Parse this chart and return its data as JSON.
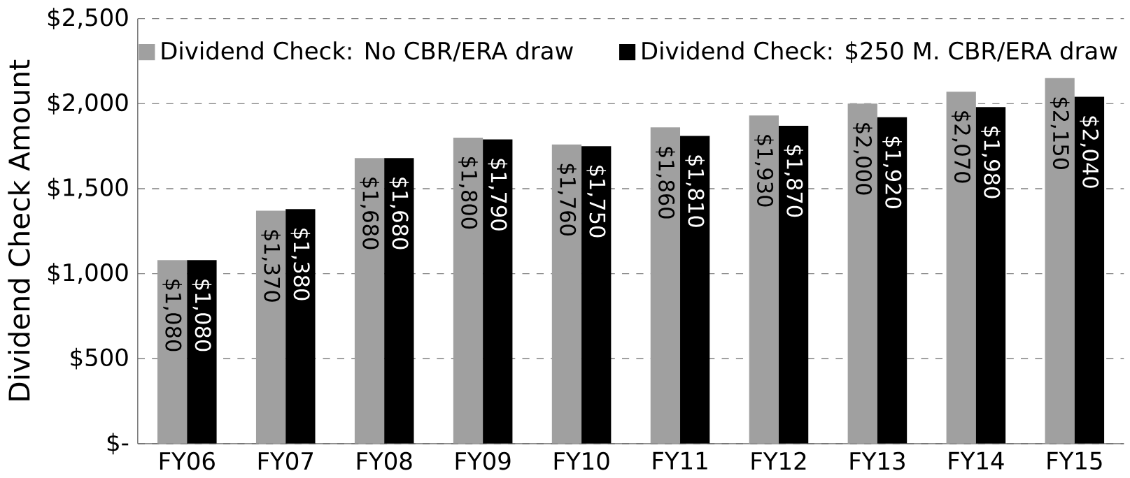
{
  "chart_data": {
    "type": "bar",
    "ylabel": "Dividend Check Amount",
    "categories": [
      "FY06",
      "FY07",
      "FY08",
      "FY09",
      "FY10",
      "FY11",
      "FY12",
      "FY13",
      "FY14",
      "FY15"
    ],
    "series": [
      {
        "name": "Dividend Check:  No CBR/ERA draw",
        "color": "#a0a0a0",
        "values": [
          1080,
          1370,
          1680,
          1800,
          1760,
          1860,
          1930,
          2000,
          2070,
          2150
        ],
        "value_labels": [
          "$1,080",
          "$1,370",
          "$1,680",
          "$1,800",
          "$1,760",
          "$1,860",
          "$1,930",
          "$2,000",
          "$2,070",
          "$2,150"
        ]
      },
      {
        "name": "Dividend Check:  $250 M. CBR/ERA draw",
        "color": "#000000",
        "values": [
          1080,
          1380,
          1680,
          1790,
          1750,
          1810,
          1870,
          1920,
          1980,
          2040
        ],
        "value_labels": [
          "$1,080",
          "$1,380",
          "$1,680",
          "$1,790",
          "$1,750",
          "$1,810",
          "$1,870",
          "$1,920",
          "$1,980",
          "$2,040"
        ]
      }
    ],
    "ylim": [
      0,
      2500
    ],
    "yticks": [
      {
        "value": 0,
        "label": "$-"
      },
      {
        "value": 500,
        "label": "$500"
      },
      {
        "value": 1000,
        "label": "$1,000"
      },
      {
        "value": 1500,
        "label": "$1,500"
      },
      {
        "value": 2000,
        "label": "$2,000"
      },
      {
        "value": 2500,
        "label": "$2,500"
      }
    ],
    "grid": "y",
    "legend": "top"
  }
}
